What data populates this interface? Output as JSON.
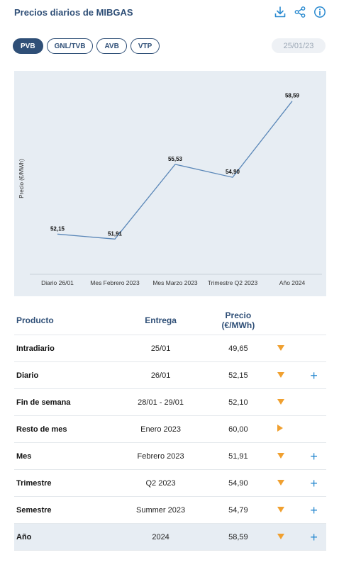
{
  "header": {
    "title": "Precios diarios de MIBGAS"
  },
  "tabs": [
    {
      "label": "PVB",
      "active": true
    },
    {
      "label": "GNL/TVB",
      "active": false
    },
    {
      "label": "AVB",
      "active": false
    },
    {
      "label": "VTP",
      "active": false
    }
  ],
  "date": "25/01/23",
  "colors": {
    "brand": "#2f4f77",
    "accent": "#2a8ad0",
    "trend": "#f0a030",
    "line": "#5a87b8"
  },
  "chart_data": {
    "type": "line",
    "categories": [
      "Diario 26/01",
      "Mes Febrero 2023",
      "Mes Marzo 2023",
      "Trimestre Q2 2023",
      "Año 2024"
    ],
    "values": [
      52.15,
      51.91,
      55.53,
      54.9,
      58.59
    ],
    "value_labels": [
      "52,15",
      "51,91",
      "55,53",
      "54,90",
      "58,59"
    ],
    "ylabel": "Precio (€/MWh)",
    "ylim": [
      51.2,
      59.3
    ]
  },
  "table": {
    "headers": {
      "product": "Producto",
      "delivery": "Entrega",
      "price": "Precio",
      "unit": "(€/MWh)"
    },
    "rows": [
      {
        "product": "Intradiario",
        "delivery": "25/01",
        "price": "49,65",
        "trend": "down",
        "expand": false
      },
      {
        "product": "Diario",
        "delivery": "26/01",
        "price": "52,15",
        "trend": "down",
        "expand": true
      },
      {
        "product": "Fin de semana",
        "delivery": "28/01 - 29/01",
        "price": "52,10",
        "trend": "down",
        "expand": false
      },
      {
        "product": "Resto de mes",
        "delivery": "Enero 2023",
        "price": "60,00",
        "trend": "right",
        "expand": false
      },
      {
        "product": "Mes",
        "delivery": "Febrero 2023",
        "price": "51,91",
        "trend": "down",
        "expand": true
      },
      {
        "product": "Trimestre",
        "delivery": "Q2 2023",
        "price": "54,90",
        "trend": "down",
        "expand": true
      },
      {
        "product": "Semestre",
        "delivery": "Summer 2023",
        "price": "54,79",
        "trend": "down",
        "expand": true
      },
      {
        "product": "Año",
        "delivery": "2024",
        "price": "58,59",
        "trend": "down",
        "expand": true,
        "highlight": true
      }
    ]
  },
  "icons": [
    "download-icon",
    "share-icon",
    "info-icon",
    "trend-arrow-icon",
    "plus-icon"
  ]
}
